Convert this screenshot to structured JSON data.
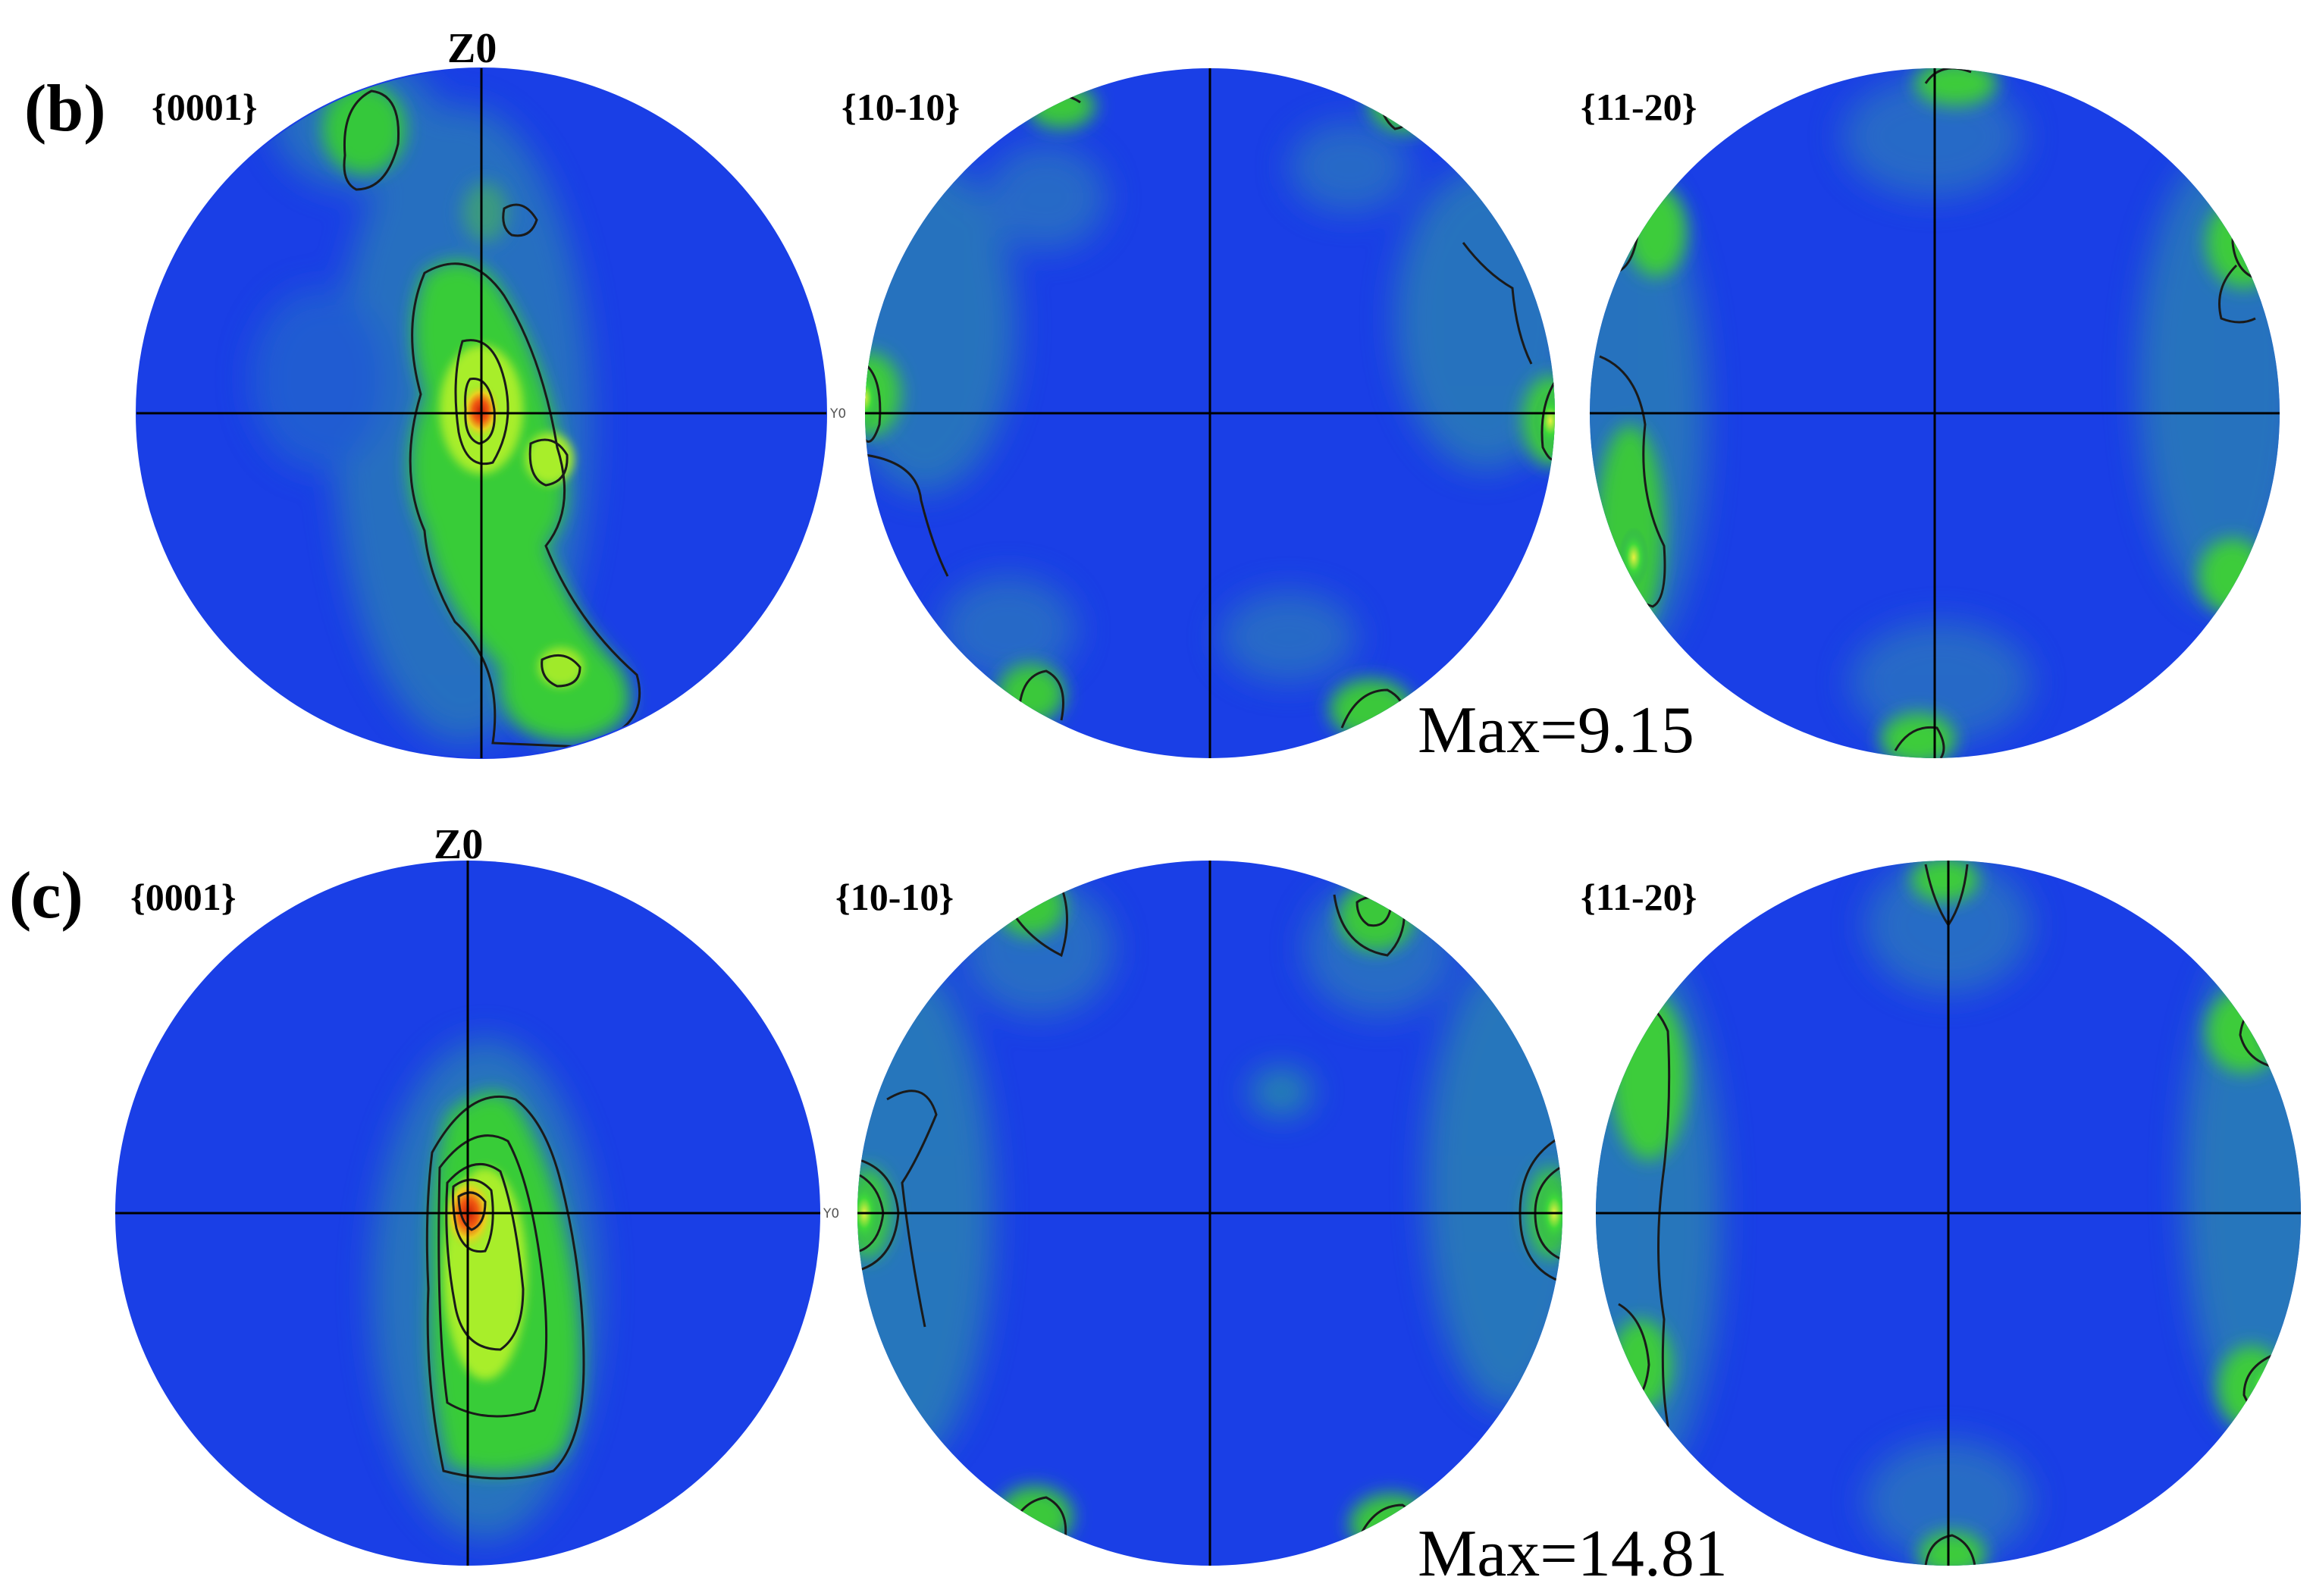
{
  "rows": [
    {
      "label": "(b)",
      "axis_label": "Z0",
      "side_label": "Y0",
      "max_label": "Max=9.15",
      "poles": [
        {
          "plane": "{0001}"
        },
        {
          "plane": "{10-10}"
        },
        {
          "plane": "{11-20}"
        }
      ]
    },
    {
      "label": "(c)",
      "axis_label": "Z0",
      "side_label": "Y0",
      "max_label": "Max=14.81",
      "poles": [
        {
          "plane": "{0001}"
        },
        {
          "plane": "{10-10}"
        },
        {
          "plane": "{11-20}"
        }
      ]
    }
  ],
  "colors": {
    "background": "#1a3fe6",
    "low": "#2a7fb0",
    "mid": "#2fc52f",
    "high": "#b8f02a",
    "peak": "#e03a10",
    "contour": "#1a1a1a"
  }
}
